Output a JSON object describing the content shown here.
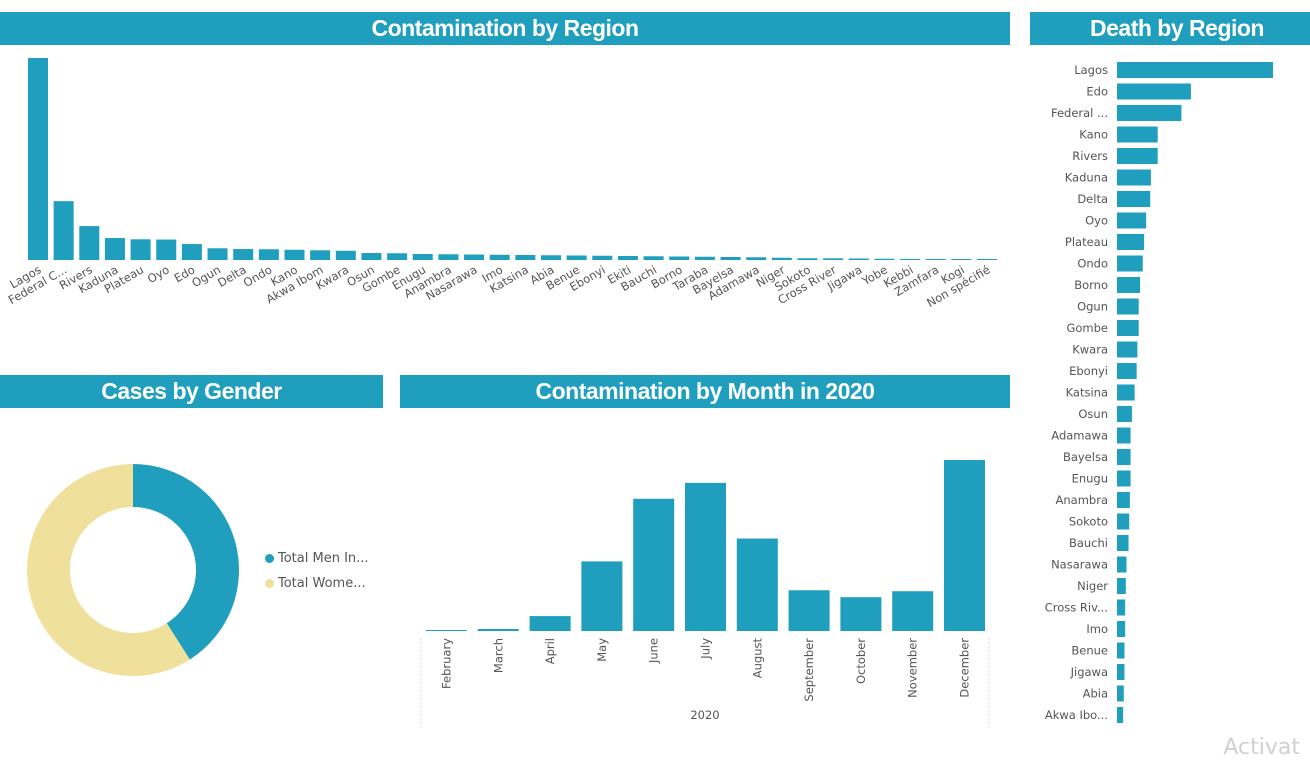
{
  "headers": {
    "contamination_region": "Contamination by Region",
    "death_region": "Death by Region",
    "gender": "Cases by Gender",
    "month": "Contamination by Month in 2020"
  },
  "colors": {
    "bar": "#1f9ebd",
    "women": "#efe19b",
    "header_bg": "#1f9ebd"
  },
  "watermark": "Activat",
  "chart_data": [
    {
      "id": "contamination_by_region",
      "type": "bar",
      "categories": [
        "Lagos",
        "Federal C...",
        "Rivers",
        "Kaduna",
        "Plateau",
        "Oyo",
        "Edo",
        "Ogun",
        "Delta",
        "Ondo",
        "Kano",
        "Akwa Ibom",
        "Kwara",
        "Osun",
        "Gombe",
        "Enugu",
        "Anambra",
        "Nasarawa",
        "Imo",
        "Katsina",
        "Abia",
        "Benue",
        "Ebonyi",
        "Ekiti",
        "Bauchi",
        "Borno",
        "Taraba",
        "Bayelsa",
        "Adamawa",
        "Niger",
        "Sokoto",
        "Cross River",
        "Jigawa",
        "Yobe",
        "Kebbi",
        "Zamfara",
        "Kogi",
        "Non spécifié"
      ],
      "values": [
        40500,
        11800,
        6800,
        4400,
        4150,
        4100,
        3200,
        2350,
        2200,
        2150,
        2050,
        1950,
        1850,
        1400,
        1350,
        1200,
        1150,
        1100,
        1050,
        1000,
        950,
        900,
        850,
        800,
        750,
        700,
        650,
        600,
        550,
        450,
        350,
        330,
        300,
        250,
        220,
        180,
        30,
        10
      ]
    },
    {
      "id": "death_by_region",
      "type": "bar",
      "categories": [
        "Lagos",
        "Edo",
        "Federal ...",
        "Kano",
        "Rivers",
        "Kaduna",
        "Delta",
        "Oyo",
        "Plateau",
        "Ondo",
        "Borno",
        "Ogun",
        "Gombe",
        "Kwara",
        "Ebonyi",
        "Katsina",
        "Osun",
        "Adamawa",
        "Bayelsa",
        "Enugu",
        "Anambra",
        "Sokoto",
        "Bauchi",
        "Nasarawa",
        "Niger",
        "Cross Riv...",
        "Imo",
        "Benue",
        "Jigawa",
        "Abia",
        "Akwa Ibo..."
      ],
      "values": [
        230,
        109,
        95,
        60,
        60,
        50,
        49,
        43,
        40,
        38,
        34,
        32,
        32,
        30,
        29,
        26,
        22,
        20,
        20,
        20,
        19,
        18,
        17,
        14,
        13,
        12,
        12,
        11,
        11,
        10,
        9
      ]
    },
    {
      "id": "cases_by_gender",
      "type": "pie",
      "labels": [
        "Total Men In...",
        "Total Wome..."
      ],
      "values": [
        41,
        59
      ]
    },
    {
      "id": "contamination_by_month",
      "type": "bar",
      "categories": [
        "February",
        "March",
        "April",
        "May",
        "June",
        "July",
        "August",
        "September",
        "October",
        "November",
        "December"
      ],
      "values": [
        1,
        2,
        15,
        70,
        133,
        149,
        93,
        41,
        34,
        40,
        172
      ],
      "xlabel": "2020"
    }
  ]
}
